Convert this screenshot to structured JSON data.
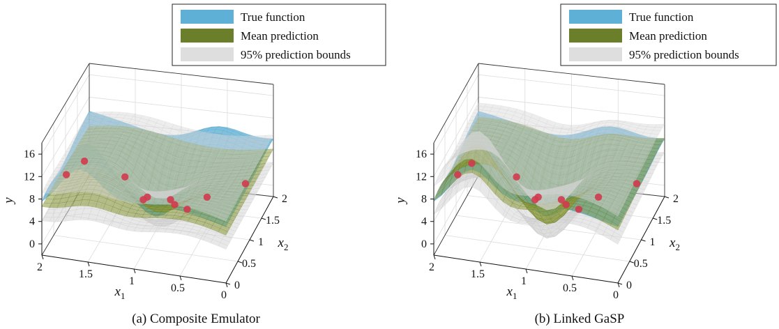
{
  "chart_data": [
    {
      "type": "surface3d",
      "caption": "(a) Composite Emulator",
      "xlabel": "x",
      "xlabel_sub": "1",
      "ylabel": "x",
      "ylabel_sub": "2",
      "zlabel": "y",
      "x_ticks": [
        "0",
        "0.5",
        "1",
        "1.5",
        "2"
      ],
      "y_ticks": [
        "0",
        "0.5",
        "1",
        "1.5",
        "2"
      ],
      "z_ticks": [
        "0",
        "4",
        "8",
        "12",
        "16"
      ],
      "xlim": [
        0,
        2
      ],
      "ylim": [
        0,
        2
      ],
      "zlim": [
        -2,
        18
      ],
      "legend": {
        "position": "top-right",
        "entries": [
          {
            "label": "True function",
            "color": "#5fb0d6"
          },
          {
            "label": "Mean prediction",
            "color": "#6b7f2a"
          },
          {
            "label": "95% prediction bounds",
            "color": "#dedede"
          }
        ]
      },
      "surfaces": {
        "true_function": {
          "color": "#5fb0d6"
        },
        "mean_prediction": {
          "color": "#8a9a3a"
        },
        "prediction_bounds": {
          "color": "#d6d6d6"
        }
      },
      "design_points": {
        "color": "#d23a4e",
        "points": [
          {
            "x1": 1.55,
            "x2": 0.05,
            "y": 15.5
          },
          {
            "x1": 1.85,
            "x2": 0.45,
            "y": 9.5
          },
          {
            "x1": 1.2,
            "x2": 0.4,
            "y": 11.0
          },
          {
            "x1": 0.95,
            "x2": 0.2,
            "y": 9.0
          },
          {
            "x1": 0.75,
            "x2": 0.75,
            "y": 4.5
          },
          {
            "x1": 0.55,
            "x2": 0.5,
            "y": 6.0
          },
          {
            "x1": 0.45,
            "x2": 0.95,
            "y": 5.0
          },
          {
            "x1": 1.15,
            "x2": 1.15,
            "y": 2.0
          },
          {
            "x1": 0.95,
            "x2": 1.35,
            "y": 0.5
          },
          {
            "x1": 0.2,
            "x2": 1.6,
            "y": 3.0
          }
        ]
      }
    },
    {
      "type": "surface3d",
      "caption": "(b) Linked GaSP",
      "xlabel": "x",
      "xlabel_sub": "1",
      "ylabel": "x",
      "ylabel_sub": "2",
      "zlabel": "y",
      "x_ticks": [
        "0",
        "0.5",
        "1",
        "1.5",
        "2"
      ],
      "y_ticks": [
        "0",
        "0.5",
        "1",
        "1.5",
        "2"
      ],
      "z_ticks": [
        "0",
        "4",
        "8",
        "12",
        "16"
      ],
      "xlim": [
        0,
        2
      ],
      "ylim": [
        0,
        2
      ],
      "zlim": [
        -2,
        18
      ],
      "legend": {
        "position": "top-right",
        "entries": [
          {
            "label": "True function",
            "color": "#5fb0d6"
          },
          {
            "label": "Mean prediction",
            "color": "#6b7f2a"
          },
          {
            "label": "95% prediction bounds",
            "color": "#dedede"
          }
        ]
      },
      "surfaces": {
        "true_function": {
          "color": "#5fb0d6"
        },
        "mean_prediction": {
          "color": "#8a9a3a"
        },
        "prediction_bounds": {
          "color": "#d6d6d6"
        }
      },
      "design_points": {
        "color": "#d23a4e",
        "points": [
          {
            "x1": 1.6,
            "x2": 0.05,
            "y": 15.0
          },
          {
            "x1": 1.85,
            "x2": 0.45,
            "y": 9.5
          },
          {
            "x1": 1.2,
            "x2": 0.4,
            "y": 11.0
          },
          {
            "x1": 0.95,
            "x2": 0.2,
            "y": 9.0
          },
          {
            "x1": 0.75,
            "x2": 0.75,
            "y": 4.5
          },
          {
            "x1": 0.55,
            "x2": 0.5,
            "y": 6.0
          },
          {
            "x1": 0.45,
            "x2": 0.95,
            "y": 5.0
          },
          {
            "x1": 1.15,
            "x2": 1.15,
            "y": 2.0
          },
          {
            "x1": 0.95,
            "x2": 1.35,
            "y": 0.5
          },
          {
            "x1": 0.2,
            "x2": 1.6,
            "y": 3.0
          }
        ]
      }
    }
  ]
}
